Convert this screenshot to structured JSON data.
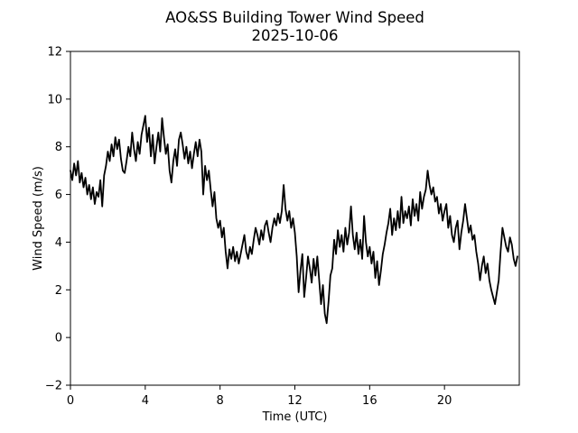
{
  "figure": {
    "title_line1": "AO&SS Building Tower Wind Speed",
    "title_line2": "2025-10-06",
    "xlabel": "Time (UTC)",
    "ylabel": "Wind Speed (m/s)"
  },
  "chart_data": {
    "type": "line",
    "title": "AO&SS Building Tower Wind Speed",
    "subtitle": "2025-10-06",
    "xlabel": "Time (UTC)",
    "ylabel": "Wind Speed (m/s)",
    "xlim": [
      0,
      24
    ],
    "ylim": [
      -2,
      12
    ],
    "xticks": {
      "values": [
        0,
        4,
        8,
        12,
        16,
        20
      ],
      "labels": [
        "0",
        "4",
        "8",
        "12",
        "16",
        "20"
      ]
    },
    "yticks": {
      "values": [
        -2,
        0,
        2,
        4,
        6,
        8,
        10,
        12
      ],
      "labels": [
        "−2",
        "0",
        "2",
        "4",
        "6",
        "8",
        "10",
        "12"
      ]
    },
    "grid": false,
    "legend": null,
    "line_color": "#000000",
    "background_color": "#ffffff",
    "x_units": "hours UTC",
    "x_start": 0.0,
    "x_step": 0.1,
    "values": [
      7.0,
      6.6,
      7.3,
      6.8,
      7.4,
      6.5,
      6.9,
      6.3,
      6.7,
      6.0,
      6.4,
      5.8,
      6.3,
      5.6,
      6.1,
      5.9,
      6.6,
      5.5,
      6.8,
      7.2,
      7.8,
      7.4,
      8.1,
      7.6,
      8.4,
      7.9,
      8.3,
      7.5,
      7.0,
      6.9,
      7.4,
      8.0,
      7.6,
      8.6,
      7.9,
      7.4,
      8.2,
      7.7,
      8.5,
      8.9,
      9.3,
      8.2,
      8.8,
      7.6,
      8.5,
      7.3,
      8.0,
      8.6,
      7.8,
      9.2,
      8.4,
      7.7,
      8.1,
      7.0,
      6.5,
      7.4,
      7.9,
      7.2,
      8.3,
      8.6,
      8.1,
      7.5,
      8.0,
      7.3,
      7.8,
      7.1,
      7.7,
      8.2,
      7.6,
      8.3,
      7.8,
      6.0,
      7.2,
      6.6,
      7.0,
      6.2,
      5.5,
      6.1,
      5.0,
      4.6,
      4.9,
      4.2,
      4.6,
      3.6,
      2.9,
      3.7,
      3.3,
      3.8,
      3.2,
      3.6,
      3.1,
      3.5,
      3.9,
      4.3,
      3.6,
      3.3,
      3.8,
      3.5,
      4.1,
      4.6,
      4.3,
      3.9,
      4.5,
      4.1,
      4.7,
      4.9,
      4.4,
      4.0,
      4.6,
      5.0,
      4.7,
      5.2,
      4.8,
      5.3,
      6.4,
      5.4,
      4.9,
      5.3,
      4.6,
      5.0,
      4.4,
      3.4,
      1.9,
      2.8,
      3.5,
      1.7,
      2.5,
      3.4,
      2.9,
      2.3,
      3.3,
      2.6,
      3.4,
      2.4,
      1.4,
      2.2,
      1.0,
      0.6,
      1.5,
      2.6,
      2.9,
      4.1,
      3.5,
      4.5,
      3.8,
      4.3,
      3.6,
      4.6,
      3.9,
      4.4,
      5.5,
      4.3,
      3.7,
      4.4,
      3.5,
      4.1,
      3.3,
      5.1,
      4.0,
      3.4,
      3.8,
      3.1,
      3.6,
      2.5,
      3.2,
      2.2,
      2.8,
      3.5,
      3.9,
      4.4,
      4.8,
      5.4,
      4.3,
      5.0,
      4.5,
      5.3,
      4.6,
      5.9,
      4.8,
      5.3,
      5.0,
      5.5,
      4.7,
      5.8,
      5.1,
      5.6,
      4.9,
      6.1,
      5.4,
      5.9,
      6.2,
      7.0,
      6.4,
      6.0,
      6.3,
      5.7,
      5.9,
      5.2,
      5.6,
      4.9,
      5.3,
      5.6,
      4.6,
      5.1,
      4.3,
      4.0,
      4.6,
      4.9,
      3.7,
      4.4,
      4.9,
      5.6,
      5.0,
      4.4,
      4.7,
      4.1,
      4.3,
      3.6,
      3.1,
      2.4,
      3.0,
      3.4,
      2.7,
      3.1,
      2.4,
      2.0,
      1.7,
      1.4,
      1.9,
      2.4,
      3.6,
      4.6,
      4.2,
      3.8,
      3.6,
      4.2,
      3.9,
      3.3,
      3.0,
      3.4
    ]
  }
}
